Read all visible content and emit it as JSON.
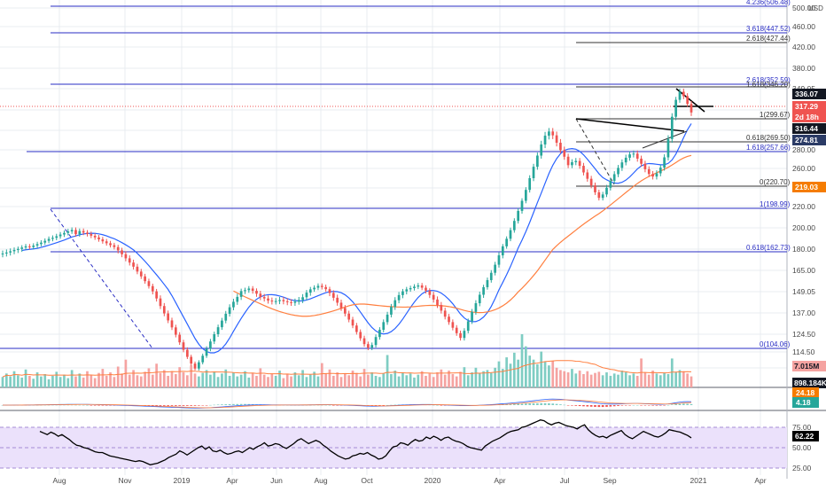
{
  "colors": {
    "up": "#26a69a",
    "down": "#ef5350",
    "up_vol": "#7fcdc3",
    "down_vol": "#f5a3a1",
    "hline": "#2a2ec4",
    "fib": "#2a2ec4",
    "ma_blue": "#2962ff",
    "ma_orange": "#ff7f3f",
    "rsi": "#000000",
    "rsi_band": "#ebe1fb",
    "grid": "#e9ecf1",
    "axis_text": "#4a4a4a",
    "price_dark": "#131722",
    "price_red": "#ef5350",
    "price_orange": "#f57c00",
    "price_navy": "#2b3b66"
  },
  "chart_data": {
    "type": "candlestick",
    "price_axis": {
      "unit": "USD",
      "ticks": [
        "500.00",
        "460.00",
        "420.00",
        "380.00",
        "349.05",
        "320.00",
        "298.20",
        "280.00",
        "260.00",
        "240.00",
        "220.00",
        "200.00",
        "180.00",
        "165.00",
        "149.05",
        "137.00",
        "124.50",
        "114.50",
        "104.50"
      ]
    },
    "x_axis_labels": [
      "Aug",
      "Nov",
      "2019",
      "Apr",
      "Jun",
      "Aug",
      "Oct",
      "2020",
      "Apr",
      "Jul",
      "Sep",
      "2021",
      "Apr"
    ],
    "price_labels": [
      {
        "text": "336.07",
        "kind": "dark"
      },
      {
        "text": "317.29",
        "kind": "red"
      },
      {
        "text": "2d 18h",
        "kind": "red"
      },
      {
        "text": "316.44",
        "kind": "dark"
      },
      {
        "text": "274.81",
        "kind": "navy"
      },
      {
        "text": "219.03",
        "kind": "orange"
      }
    ],
    "horizontal_levels": [
      {
        "label": "4.236(506.48)"
      },
      {
        "label": "3.618(447.52)"
      },
      {
        "label": "2.618(427.44)"
      },
      {
        "label": "2.618(352.59)"
      },
      {
        "label": "1.618(346.20)"
      },
      {
        "label": "1(299.67)"
      },
      {
        "label": "0.618(269.50)"
      },
      {
        "label": "1.618(257.66)"
      },
      {
        "label": "0(220.70)"
      },
      {
        "label": "1(198.99)"
      },
      {
        "label": "0.618(162.73)"
      },
      {
        "label": "0(104.06)"
      }
    ],
    "volume_labels": [
      {
        "text": "7.015M",
        "kind": "vol_red"
      },
      {
        "text": "898.184K",
        "kind": "dark"
      }
    ],
    "macd": {
      "labels": [
        {
          "text": "24.18",
          "kind": "orange"
        },
        {
          "text": "4.18",
          "kind": "teal"
        }
      ]
    },
    "rsi": {
      "ticks": [
        "75.00",
        "50.00",
        "25.00"
      ],
      "last_label": "62.22",
      "values": [
        70,
        68,
        66,
        69,
        67,
        64,
        66,
        63,
        60,
        56,
        53,
        52,
        50,
        49,
        47,
        45,
        44,
        44,
        42,
        40,
        39,
        38,
        37,
        36,
        35,
        34,
        33,
        34,
        33,
        31,
        29,
        30,
        31,
        33,
        35,
        38,
        40,
        42,
        46,
        44,
        41,
        44,
        47,
        50,
        52,
        48,
        51,
        46,
        45,
        47,
        44,
        42,
        43,
        45,
        46,
        44,
        47,
        50,
        48,
        51,
        53,
        56,
        52,
        53,
        55,
        54,
        51,
        49,
        52,
        55,
        59,
        61,
        58,
        55,
        57,
        59,
        57,
        53,
        50,
        46,
        43,
        40,
        38,
        36,
        37,
        40,
        41,
        43,
        42,
        44,
        41,
        39,
        36,
        37,
        40,
        46,
        51,
        52,
        56,
        55,
        53,
        57,
        60,
        58,
        59,
        63,
        61,
        64,
        62,
        59,
        62,
        63,
        60,
        58,
        57,
        55,
        52,
        50,
        49,
        48,
        47,
        52,
        55,
        58,
        60,
        62,
        65,
        68,
        70,
        71,
        72,
        75,
        76,
        78,
        80,
        82,
        84,
        83,
        80,
        78,
        80,
        81,
        79,
        77,
        76,
        75,
        73,
        76,
        78,
        72,
        68,
        65,
        63,
        64,
        62,
        65,
        67,
        69,
        71,
        66,
        63,
        61,
        64,
        67,
        70,
        68,
        66,
        64,
        63,
        65,
        68,
        72,
        71,
        70,
        69,
        67,
        65,
        62
      ]
    },
    "candles": [
      [
        176.3,
        176.9
      ],
      [
        176.9,
        177.6
      ],
      [
        177.6,
        178.5
      ],
      [
        178.5,
        179.4
      ],
      [
        179.4,
        180.2
      ],
      [
        180.2,
        181.5
      ],
      [
        181.5,
        182.6
      ],
      [
        182.6,
        181.9
      ],
      [
        181.9,
        183.3
      ],
      [
        183.3,
        184.7
      ],
      [
        184.7,
        186.1
      ],
      [
        186.1,
        187.8
      ],
      [
        187.8,
        189.6
      ],
      [
        189.6,
        190.6
      ],
      [
        190.6,
        192.1
      ],
      [
        192.1,
        193.7
      ],
      [
        193.7,
        195.2
      ],
      [
        195.2,
        196.7
      ],
      [
        196.7,
        198.0
      ],
      [
        198.0,
        194.0
      ],
      [
        194.0,
        197.0
      ],
      [
        197.0,
        195.5
      ],
      [
        195.5,
        194.2
      ],
      [
        194.2,
        192.6
      ],
      [
        192.6,
        191.0
      ],
      [
        191.0,
        189.2
      ],
      [
        189.2,
        187.3
      ],
      [
        187.3,
        185.5
      ],
      [
        185.5,
        183.7
      ],
      [
        183.7,
        181.9
      ],
      [
        181.9,
        179.1
      ],
      [
        179.1,
        176.4
      ],
      [
        176.4,
        173.5
      ],
      [
        173.5,
        170.5
      ],
      [
        170.5,
        167.6
      ],
      [
        167.6,
        164.1
      ],
      [
        164.1,
        160.5
      ],
      [
        160.5,
        156.9
      ],
      [
        156.9,
        153.2
      ],
      [
        153.2,
        149.3
      ],
      [
        149.3,
        145.2
      ],
      [
        145.2,
        140.9
      ],
      [
        140.9,
        136.7
      ],
      [
        136.7,
        132.6
      ],
      [
        132.6,
        128.5
      ],
      [
        128.5,
        124.2
      ],
      [
        124.2,
        119.9
      ],
      [
        119.9,
        115.7
      ],
      [
        115.7,
        111.4
      ],
      [
        111.4,
        107.2
      ],
      [
        107.2,
        104.1
      ],
      [
        104.1,
        108.0
      ],
      [
        108.0,
        112.1
      ],
      [
        112.1,
        116.3
      ],
      [
        116.3,
        120.4
      ],
      [
        120.4,
        124.5
      ],
      [
        124.5,
        128.6
      ],
      [
        128.6,
        132.5
      ],
      [
        132.5,
        136.5
      ],
      [
        136.5,
        140.2
      ],
      [
        140.2,
        143.3
      ],
      [
        143.3,
        146.1
      ],
      [
        146.1,
        149.5
      ],
      [
        149.5,
        150.2
      ],
      [
        150.2,
        151.4
      ],
      [
        151.4,
        149.7
      ],
      [
        149.7,
        147.9
      ],
      [
        147.9,
        146.0
      ],
      [
        146.0,
        145.2
      ],
      [
        145.2,
        144.0
      ],
      [
        144.0,
        143.5
      ],
      [
        143.5,
        143.7
      ],
      [
        143.7,
        144.3
      ],
      [
        144.3,
        143.6
      ],
      [
        143.6,
        143.1
      ],
      [
        143.1,
        142.7
      ],
      [
        142.7,
        143.4
      ],
      [
        143.4,
        144.3
      ],
      [
        144.3,
        145.9
      ],
      [
        145.9,
        148.5
      ],
      [
        148.5,
        150.8
      ],
      [
        150.8,
        152.0
      ],
      [
        152.0,
        153.4
      ],
      [
        153.4,
        152.5
      ],
      [
        152.5,
        150.9
      ],
      [
        150.9,
        148.3
      ],
      [
        148.3,
        145.6
      ],
      [
        145.6,
        142.8
      ],
      [
        142.8,
        139.8
      ],
      [
        139.8,
        136.6
      ],
      [
        136.6,
        133.1
      ],
      [
        133.1,
        129.6
      ],
      [
        129.6,
        125.8
      ],
      [
        125.8,
        122.2
      ],
      [
        122.2,
        118.9
      ],
      [
        118.9,
        116.9
      ],
      [
        116.9,
        118.4
      ],
      [
        118.4,
        122.9
      ],
      [
        122.9,
        127.1
      ],
      [
        127.1,
        131.6
      ],
      [
        131.6,
        136.0
      ],
      [
        136.0,
        140.4
      ],
      [
        140.4,
        144.2
      ],
      [
        144.2,
        147.1
      ],
      [
        147.1,
        149.3
      ],
      [
        149.3,
        150.8
      ],
      [
        150.8,
        151.7
      ],
      [
        151.7,
        152.8
      ],
      [
        152.8,
        153.7
      ],
      [
        153.7,
        152.0
      ],
      [
        152.0,
        149.8
      ],
      [
        149.8,
        147.2
      ],
      [
        147.2,
        144.6
      ],
      [
        144.6,
        141.5
      ],
      [
        141.5,
        138.3
      ],
      [
        138.3,
        134.8
      ],
      [
        134.8,
        131.6
      ],
      [
        131.6,
        128.3
      ],
      [
        128.3,
        125.1
      ],
      [
        125.1,
        122.4
      ],
      [
        122.4,
        126.5
      ],
      [
        126.5,
        132.1
      ],
      [
        132.1,
        137.6
      ],
      [
        137.6,
        142.5
      ],
      [
        142.5,
        147.3
      ],
      [
        147.3,
        152.4
      ],
      [
        152.4,
        157.7
      ],
      [
        157.7,
        163.2
      ],
      [
        163.2,
        169.0
      ],
      [
        169.0,
        175.6
      ],
      [
        175.6,
        182.6
      ],
      [
        182.6,
        189.7
      ],
      [
        189.7,
        197.8
      ],
      [
        197.8,
        206.5
      ],
      [
        206.5,
        215.9
      ],
      [
        215.9,
        226.2
      ],
      [
        226.2,
        237.9
      ],
      [
        237.9,
        250.0
      ],
      [
        250.0,
        261.8
      ],
      [
        261.8,
        273.8
      ],
      [
        273.8,
        285.0
      ],
      [
        285.0,
        293.2
      ],
      [
        293.2,
        297.1
      ],
      [
        297.1,
        293.5
      ],
      [
        293.5,
        286.6
      ],
      [
        286.6,
        279.6
      ],
      [
        279.6,
        272.6
      ],
      [
        272.6,
        263.5
      ],
      [
        263.5,
        266.7
      ],
      [
        266.7,
        268.0
      ],
      [
        268.0,
        262.8
      ],
      [
        262.8,
        255.9
      ],
      [
        255.9,
        249.4
      ],
      [
        249.4,
        242.6
      ],
      [
        242.6,
        235.3
      ],
      [
        235.3,
        229.3
      ],
      [
        229.3,
        233.0
      ],
      [
        233.0,
        240.2
      ],
      [
        240.2,
        247.3
      ],
      [
        247.3,
        254.1
      ],
      [
        254.1,
        260.6
      ],
      [
        260.6,
        266.5
      ],
      [
        266.5,
        271.5
      ],
      [
        271.5,
        275.1
      ],
      [
        275.1,
        275.9
      ],
      [
        275.9,
        270.5
      ],
      [
        270.5,
        265.0
      ],
      [
        265.0,
        259.2
      ],
      [
        259.2,
        254.3
      ],
      [
        254.3,
        251.7
      ],
      [
        251.7,
        255.0
      ],
      [
        255.0,
        260.9
      ],
      [
        260.9,
        271.9
      ],
      [
        271.9,
        290.1
      ],
      [
        290.1,
        312.7
      ],
      [
        312.7,
        333.8
      ],
      [
        333.8,
        344.8
      ],
      [
        344.8,
        338.8
      ],
      [
        338.8,
        328.2
      ],
      [
        328.2,
        317.3
      ]
    ],
    "volume": [
      1.8,
      2.4,
      1.9,
      2.8,
      2.1,
      1.7,
      3.1,
      2.0,
      1.5,
      2.6,
      1.9,
      2.3,
      1.4,
      2.0,
      2.7,
      1.8,
      2.2,
      1.6,
      3.0,
      1.9,
      2.4,
      1.7,
      2.8,
      2.1,
      1.6,
      2.5,
      3.2,
      2.0,
      2.6,
      1.8,
      3.6,
      2.4,
      4.8,
      2.2,
      3.0,
      2.1,
      1.9,
      2.7,
      3.3,
      2.2,
      4.1,
      2.5,
      3.0,
      2.0,
      2.8,
      2.3,
      3.5,
      2.6,
      2.1,
      3.8,
      2.4,
      1.9,
      2.5,
      3.0,
      2.2,
      2.7,
      1.8,
      2.4,
      3.1,
      2.0,
      2.6,
      1.9,
      2.2,
      2.8,
      1.7,
      2.5,
      2.0,
      3.3,
      2.2,
      1.8,
      2.4,
      2.0,
      2.9,
      1.6,
      2.3,
      1.9,
      2.6,
      2.1,
      3.0,
      1.8,
      2.2,
      2.7,
      1.9,
      4.2,
      2.4,
      3.1,
      2.0,
      2.6,
      1.8,
      2.3,
      2.1,
      2.9,
      2.5,
      1.9,
      3.2,
      2.2,
      2.6,
      2.0,
      1.8,
      2.4,
      5.6,
      2.3,
      2.9,
      1.9,
      2.6,
      2.1,
      2.4,
      1.7,
      2.2,
      2.8,
      2.0,
      2.4,
      1.8,
      2.6,
      3.1,
      2.2,
      2.9,
      2.3,
      1.9,
      2.7,
      3.5,
      2.1,
      2.6,
      3.4,
      2.4,
      2.8,
      3.0,
      2.5,
      3.4,
      4.5,
      3.2,
      5.2,
      4.1,
      6.0,
      4.8,
      9.2,
      7.1,
      5.5,
      4.8,
      4.0,
      6.2,
      4.5,
      3.8,
      4.6,
      3.4,
      3.0,
      2.8,
      2.6,
      3.2,
      2.4,
      2.9,
      2.3,
      2.8,
      2.2,
      2.5,
      2.7,
      2.1,
      2.6,
      2.0,
      2.4,
      2.2,
      2.9,
      2.6,
      2.1,
      2.4,
      2.0,
      5.0,
      2.6,
      2.2,
      2.9,
      2.4,
      2.1,
      2.5,
      2.3,
      5.0,
      2.6,
      3.0,
      2.8,
      2.4,
      1.9
    ]
  }
}
